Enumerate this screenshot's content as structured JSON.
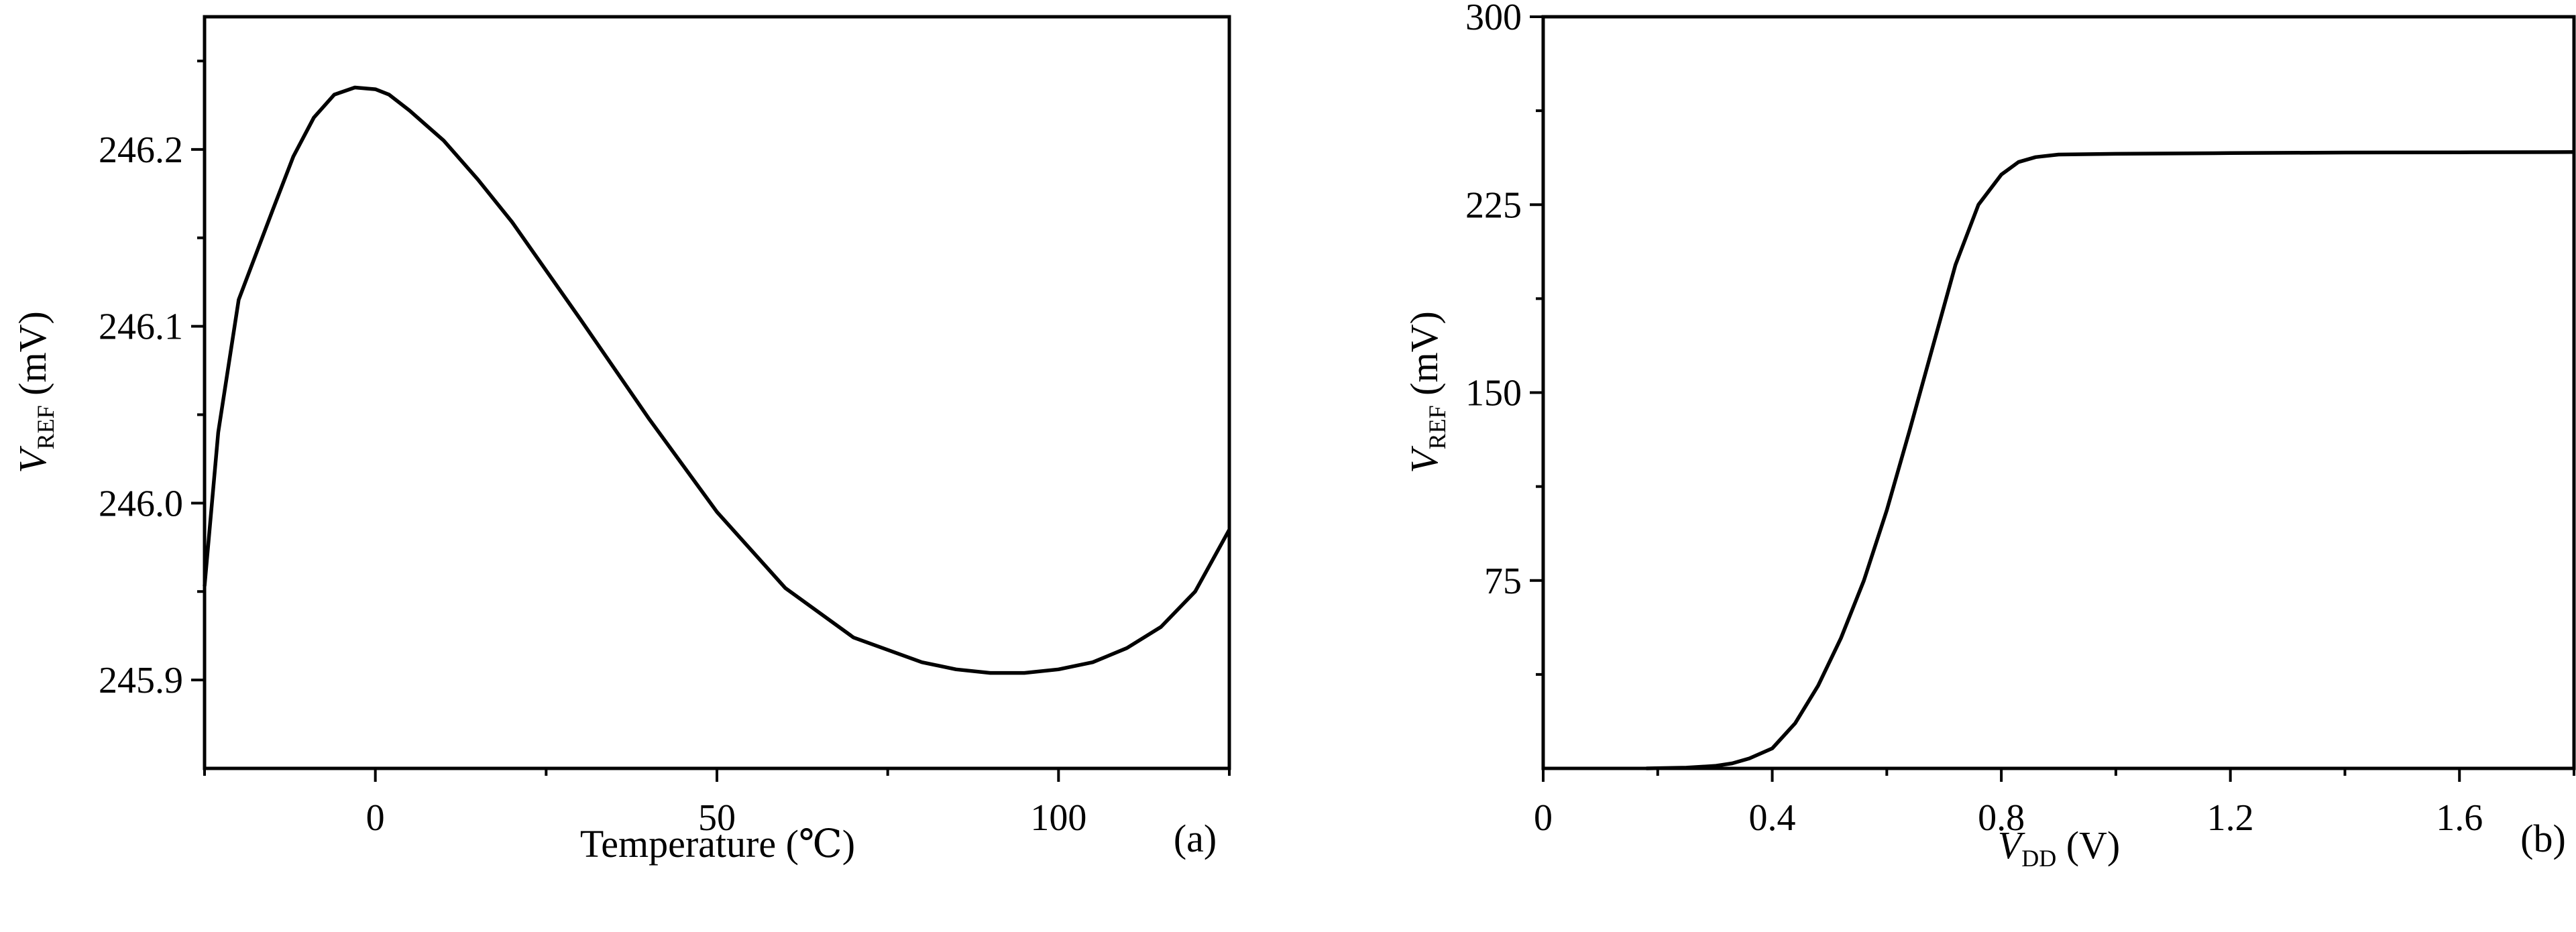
{
  "chart_data": [
    {
      "type": "line",
      "panel_label": "(a)",
      "xlabel": "Temperature (℃)",
      "ylabel": {
        "main": "V",
        "sub": "REF",
        "unit": "(mV)"
      },
      "xlim": [
        -25,
        125
      ],
      "ylim": [
        245.85,
        246.275
      ],
      "xticks": [
        0,
        50,
        100
      ],
      "xtick_labels": [
        "0",
        "50",
        "100"
      ],
      "yticks": [
        245.9,
        246.0,
        246.1,
        246.2
      ],
      "ytick_labels": [
        "245.9",
        "246.0",
        "246.1",
        "246.2"
      ],
      "grid": false,
      "series": [
        {
          "x": [
            -25,
            -23,
            -20,
            -15,
            -12,
            -9,
            -6,
            -3,
            0,
            2,
            5,
            10,
            15,
            20,
            30,
            40,
            50,
            60,
            70,
            80,
            85,
            90,
            95,
            100,
            105,
            110,
            115,
            120,
            125
          ],
          "y": [
            245.953,
            246.04,
            246.115,
            246.166,
            246.196,
            246.218,
            246.231,
            246.235,
            246.234,
            246.231,
            246.222,
            246.205,
            246.183,
            246.159,
            246.104,
            246.048,
            245.995,
            245.952,
            245.924,
            245.91,
            245.906,
            245.904,
            245.904,
            245.906,
            245.91,
            245.918,
            245.93,
            245.95,
            245.985
          ]
        }
      ]
    },
    {
      "type": "line",
      "panel_label": "(b)",
      "xlabel": {
        "main": "V",
        "sub": "DD",
        "unit": "(V)"
      },
      "ylabel": {
        "main": "V",
        "sub": "REF",
        "unit": "(mV)"
      },
      "xlim": [
        0,
        1.8
      ],
      "ylim": [
        0,
        300
      ],
      "xticks": [
        0,
        0.4,
        0.8,
        1.2,
        1.6
      ],
      "xtick_labels": [
        "0",
        "0.4",
        "0.8",
        "1.2",
        "1.6"
      ],
      "yticks": [
        75,
        150,
        225,
        300
      ],
      "ytick_labels": [
        "75",
        "150",
        "225",
        "300"
      ],
      "grid": false,
      "series": [
        {
          "x": [
            0.18,
            0.25,
            0.3,
            0.33,
            0.36,
            0.4,
            0.44,
            0.48,
            0.52,
            0.56,
            0.6,
            0.64,
            0.68,
            0.72,
            0.76,
            0.8,
            0.83,
            0.86,
            0.9,
            1.0,
            1.2,
            1.4,
            1.6,
            1.8
          ],
          "y": [
            0,
            0.3,
            1,
            2,
            4,
            8,
            18,
            33,
            52,
            75,
            103,
            135,
            168,
            201,
            225,
            237,
            242,
            244,
            245,
            245.3,
            245.6,
            245.8,
            245.9,
            246
          ]
        }
      ]
    }
  ]
}
